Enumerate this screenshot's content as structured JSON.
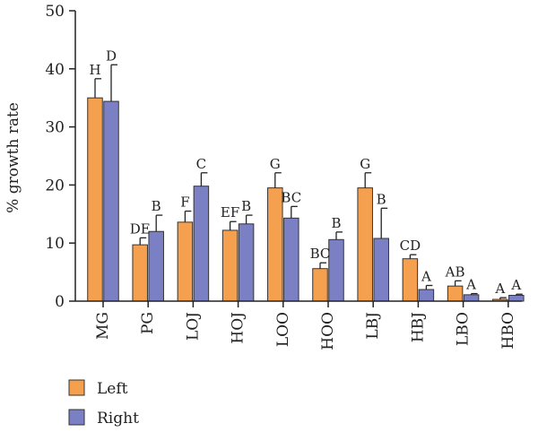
{
  "chart_data": {
    "type": "bar",
    "ylabel": "% growth rate",
    "xlabel": "",
    "ylim": [
      0,
      50
    ],
    "yticks": [
      0,
      10,
      20,
      30,
      40,
      50
    ],
    "grid": false,
    "legend_position": "bottom-left",
    "categories": [
      "MG",
      "PG",
      "LOJ",
      "HOJ",
      "LOO",
      "HOO",
      "LBJ",
      "HBJ",
      "LBO",
      "HBO"
    ],
    "series": [
      {
        "name": "Left",
        "color": "#F5A04E",
        "values": [
          35.0,
          9.7,
          13.6,
          12.2,
          19.5,
          5.6,
          19.5,
          7.3,
          2.6,
          0.3
        ],
        "errors": [
          3.3,
          1.2,
          1.9,
          1.5,
          2.6,
          1.0,
          2.6,
          0.7,
          0.9,
          0.3
        ],
        "labels": [
          "H",
          "DE",
          "F",
          "EF",
          "G",
          "BC",
          "G",
          "CD",
          "AB",
          "A"
        ]
      },
      {
        "name": "Right",
        "color": "#7B7FC4",
        "values": [
          34.4,
          12.0,
          19.8,
          13.3,
          14.3,
          10.6,
          10.8,
          2.0,
          1.1,
          1.0
        ],
        "errors": [
          6.3,
          2.8,
          2.3,
          1.5,
          2.0,
          1.3,
          5.2,
          0.7,
          0.2,
          0.2
        ],
        "labels": [
          "D",
          "B",
          "C",
          "B",
          "BC",
          "B",
          "B",
          "A",
          "A",
          "A"
        ]
      }
    ]
  }
}
